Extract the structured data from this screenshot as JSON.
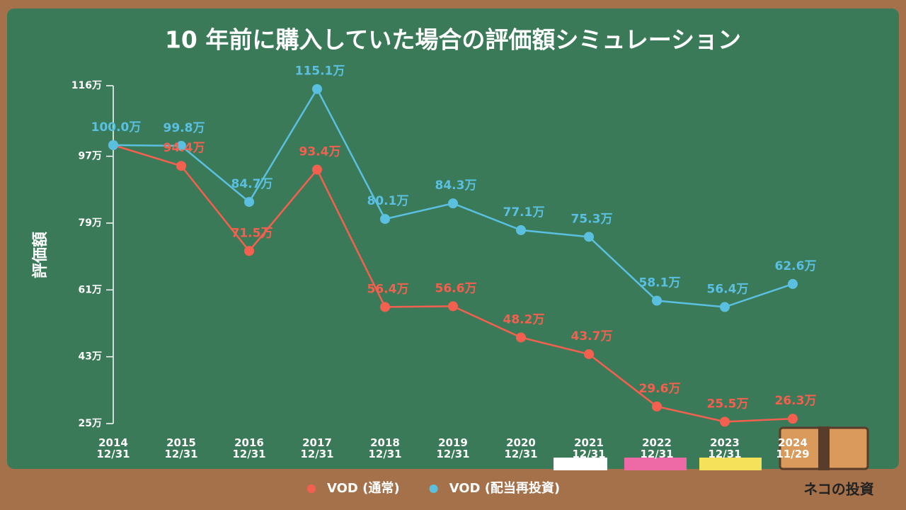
{
  "chart_data": {
    "type": "line",
    "title": "10 年前に購入していた場合の評価額シミュレーション",
    "y_label": "評価額",
    "brand": "ネコの投資",
    "categories": [
      "2014\n12/31",
      "2015\n12/31",
      "2016\n12/31",
      "2017\n12/31",
      "2018\n12/31",
      "2019\n12/31",
      "2020\n12/31",
      "2021\n12/31",
      "2022\n12/31",
      "2023\n12/31",
      "2024\n11/29"
    ],
    "series": [
      {
        "name": "VOD (通常)",
        "color": "#f4604f",
        "values": [
          100.0,
          94.4,
          71.5,
          93.4,
          56.4,
          56.6,
          48.2,
          43.7,
          29.6,
          25.5,
          26.3
        ],
        "value_labels": [
          null,
          "94.4万",
          "71.5万",
          "93.4万",
          "56.4万",
          "56.6万",
          "48.2万",
          "43.7万",
          "29.6万",
          "25.5万",
          "26.3万"
        ]
      },
      {
        "name": "VOD (配当再投資)",
        "color": "#5bc0e0",
        "values": [
          100.0,
          99.8,
          84.7,
          115.1,
          80.1,
          84.3,
          77.1,
          75.3,
          58.1,
          56.4,
          62.6
        ],
        "value_labels": [
          "100.0万",
          "99.8万",
          "84.7万",
          "115.1万",
          "80.1万",
          "84.3万",
          "77.1万",
          "75.3万",
          "58.1万",
          "56.4万",
          "62.6万"
        ]
      }
    ],
    "ylim": [
      25,
      116
    ],
    "yticks": [
      {
        "value": 25,
        "label": "25万"
      },
      {
        "value": 43,
        "label": "43万"
      },
      {
        "value": 61,
        "label": "61万"
      },
      {
        "value": 79,
        "label": "79万"
      },
      {
        "value": 97,
        "label": "97万"
      },
      {
        "value": 116,
        "label": "116万"
      }
    ],
    "legend": "bottom"
  }
}
